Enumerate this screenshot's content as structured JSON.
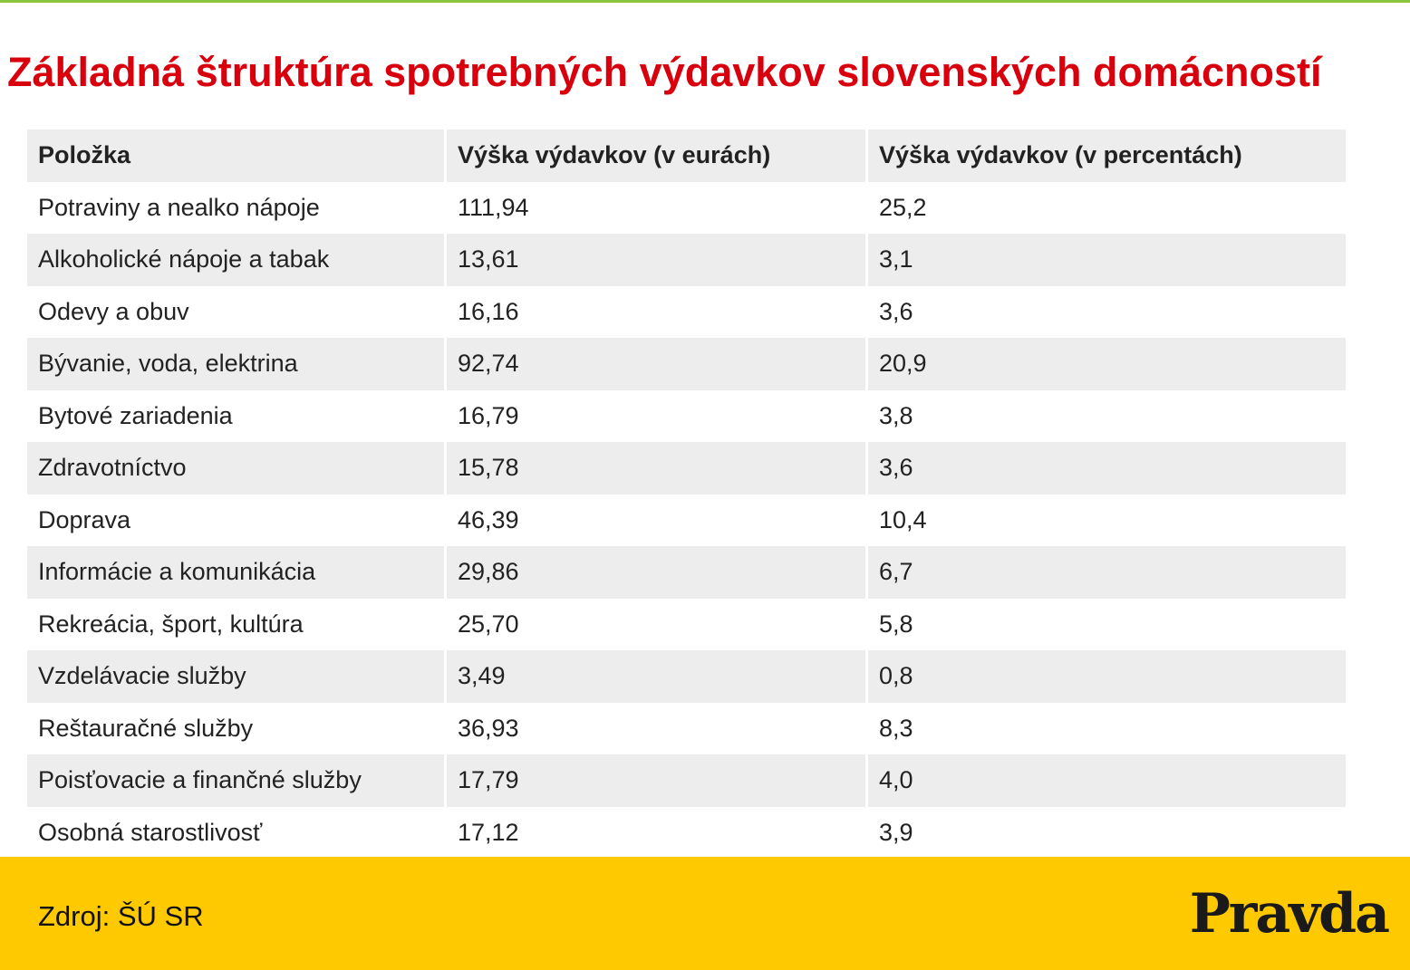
{
  "title": "Základná štruktúra spotrebných výdavkov slovenských domácností",
  "table": {
    "headers": [
      "Položka",
      "Výška výdavkov (v eurách)",
      "Výška výdavkov (v percentách)"
    ],
    "rows": [
      [
        "Potraviny a nealko nápoje",
        "111,94",
        "25,2"
      ],
      [
        "Alkoholické nápoje a tabak",
        "13,61",
        "3,1"
      ],
      [
        "Odevy a obuv",
        "16,16",
        "3,6"
      ],
      [
        "Bývanie, voda, elektrina",
        "92,74",
        "20,9"
      ],
      [
        "Bytové zariadenia",
        "16,79",
        "3,8"
      ],
      [
        "Zdravotníctvo",
        "15,78",
        "3,6"
      ],
      [
        "Doprava",
        "46,39",
        "10,4"
      ],
      [
        "Informácie a komunikácia",
        "29,86",
        "6,7"
      ],
      [
        "Rekreácia, šport, kultúra",
        "25,70",
        "5,8"
      ],
      [
        "Vzdelávacie služby",
        "3,49",
        "0,8"
      ],
      [
        "Reštauračné služby",
        "36,93",
        "8,3"
      ],
      [
        "Poisťovacie a finančné služby",
        "17,79",
        "4,0"
      ],
      [
        "Osobná starostlivosť",
        "17,12",
        "3,9"
      ]
    ]
  },
  "footer": {
    "source": "Zdroj: ŠÚ SR",
    "logo": "Pravda"
  },
  "colors": {
    "title": "#d9000d",
    "top_line": "#8cc63f",
    "row_shade": "#ededed",
    "footer_bg": "#ffc900"
  }
}
